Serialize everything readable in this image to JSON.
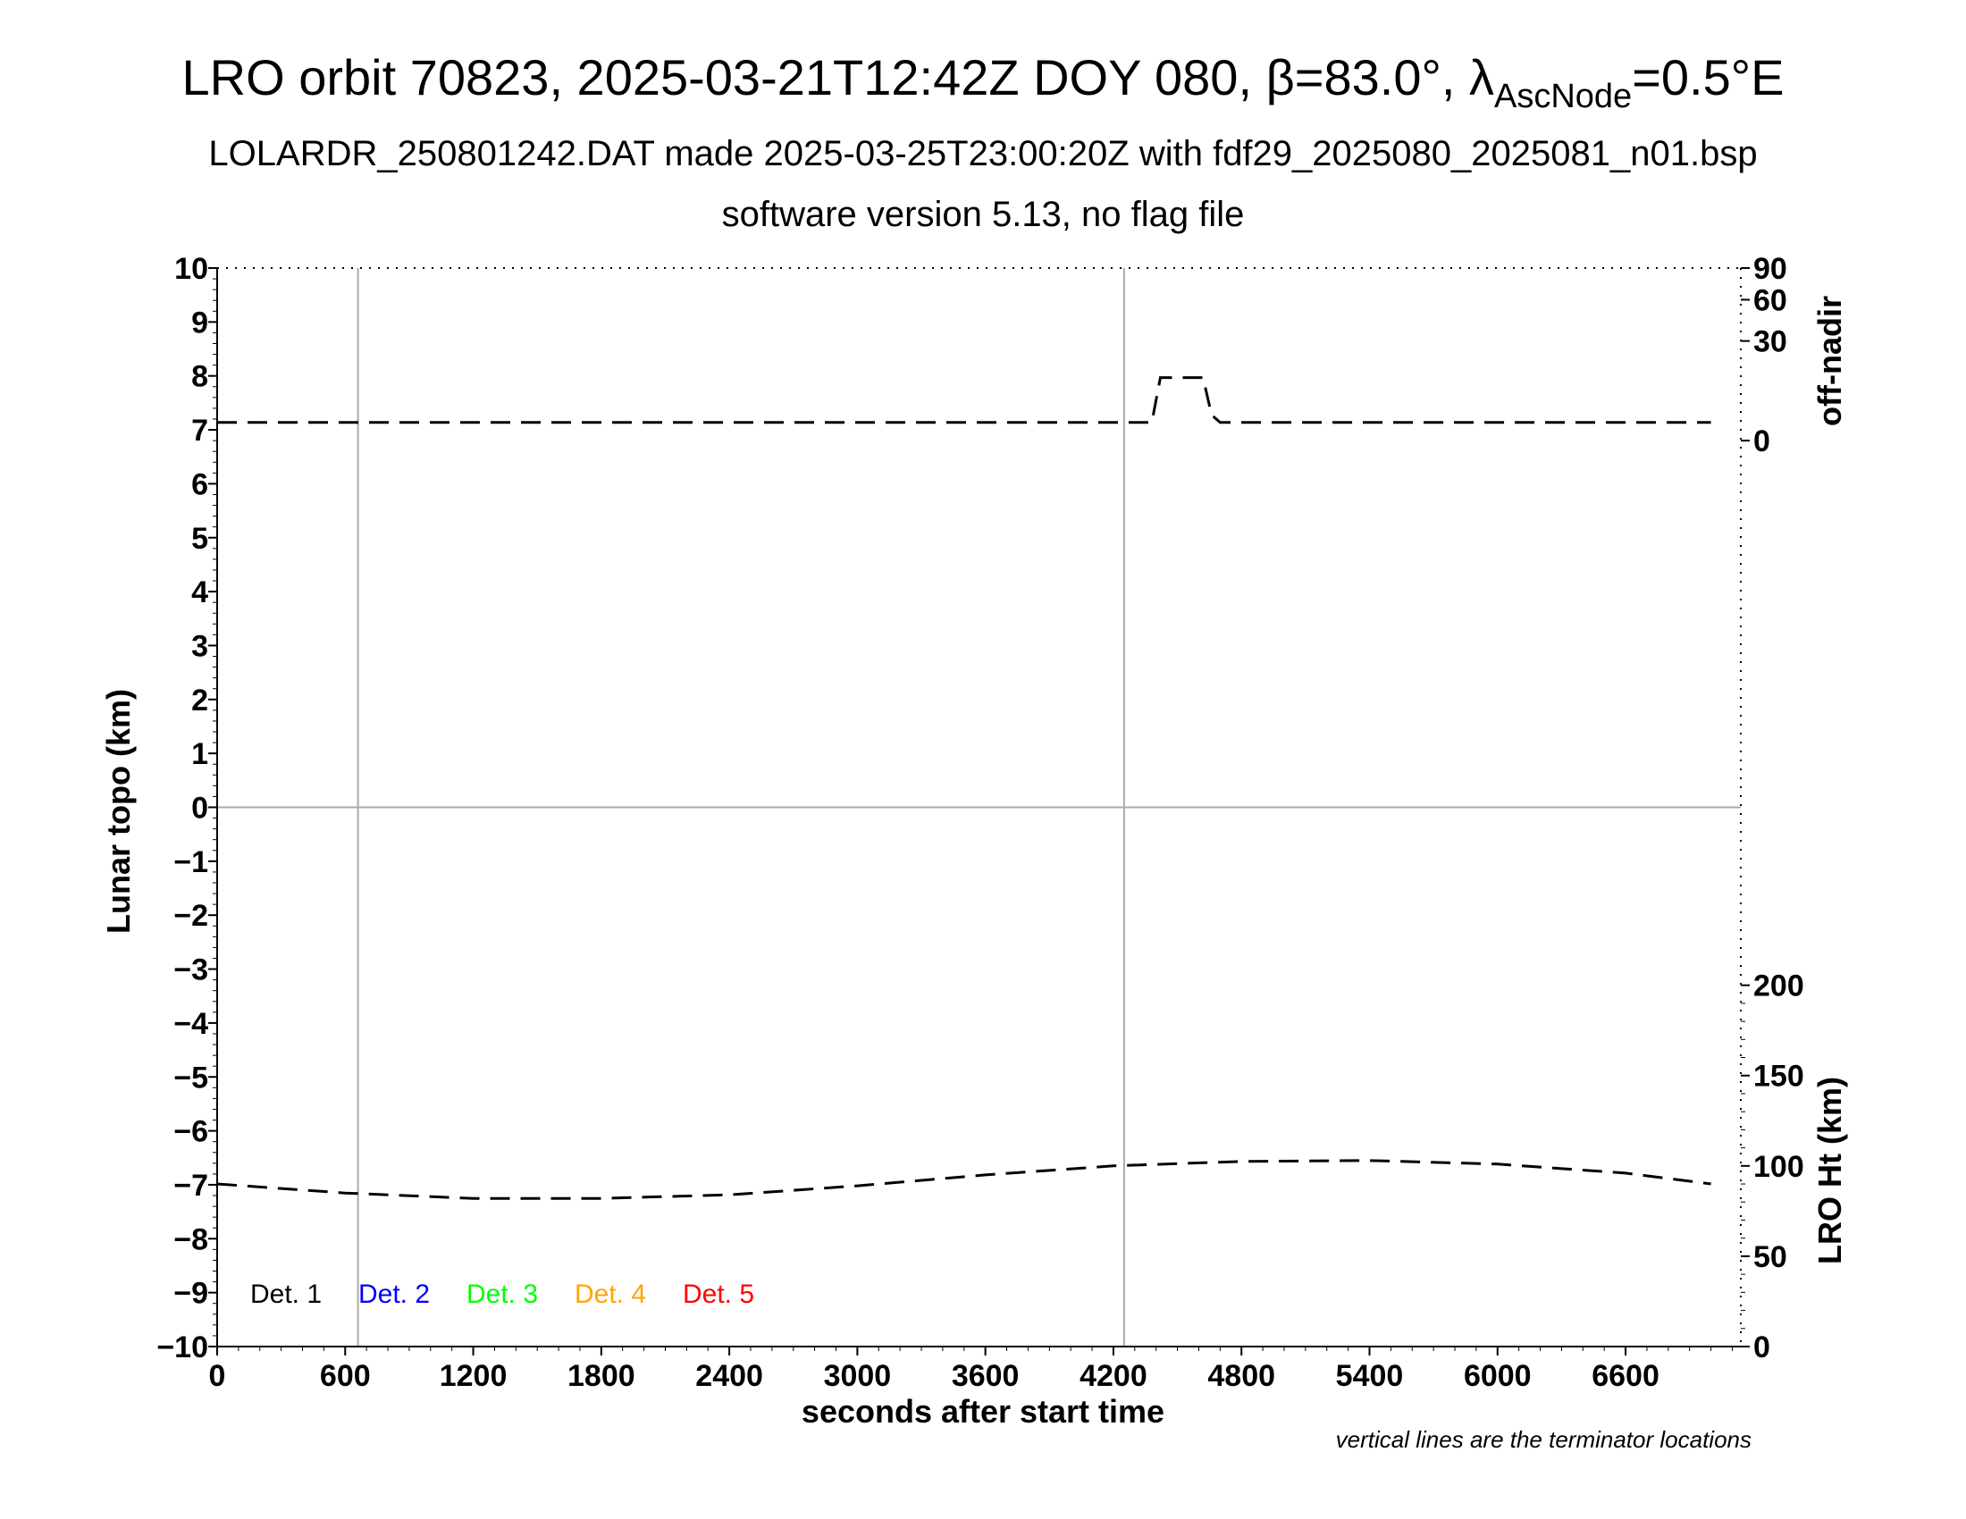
{
  "title": {
    "main": "LRO orbit 70823, 2025-03-21T12:42Z DOY 080, β=83.0°, λ",
    "sub": "AscNode",
    "tail": "=0.5°E"
  },
  "subtitle1": "LOLARDR_250801242.DAT made 2025-03-25T23:00:20Z with fdf29_2025080_2025081_n01.bsp",
  "subtitle2": "software version 5.13, no flag file",
  "footnote": "vertical lines are the terminator locations",
  "chart_data": {
    "type": "line",
    "xlabel": "seconds after start time",
    "ylabel": "Lunar topo (km)",
    "xlim": [
      0,
      7140
    ],
    "ylim": [
      -10,
      10
    ],
    "xticks": [
      0,
      600,
      1200,
      1800,
      2400,
      3000,
      3600,
      4200,
      4800,
      5400,
      6000,
      6600
    ],
    "yticks": [
      10,
      9,
      8,
      7,
      6,
      5,
      4,
      3,
      2,
      1,
      0,
      -1,
      -2,
      -3,
      -4,
      -5,
      -6,
      -7,
      -8,
      -9,
      -10
    ],
    "right_axis_top": {
      "label": "off-nadir",
      "ticks": [
        0,
        30,
        60,
        90
      ]
    },
    "right_axis_bottom": {
      "label": "LRO Ht (km)",
      "ylim": [
        0,
        200
      ],
      "ticks": [
        0,
        50,
        100,
        150,
        200
      ]
    },
    "terminator_lines_x": [
      660,
      4250
    ],
    "zero_line_y": 0,
    "legend": [
      {
        "label": "Det. 1",
        "color": "#000000"
      },
      {
        "label": "Det. 2",
        "color": "#0000ff"
      },
      {
        "label": "Det. 3",
        "color": "#00ff00"
      },
      {
        "label": "Det. 4",
        "color": "#ffa500"
      },
      {
        "label": "Det. 5",
        "color": "#ff0000"
      }
    ],
    "series": [
      {
        "axis": "off-nadir",
        "style": "dashed",
        "color": "#000000",
        "x": [
          0,
          4380,
          4420,
          4620,
          4660,
          4700,
          7000
        ],
        "y": [
          1,
          1,
          12,
          12,
          2,
          1,
          1
        ]
      },
      {
        "axis": "LRO Ht (km)",
        "style": "dashed",
        "color": "#000000",
        "x": [
          0,
          600,
          1200,
          1800,
          2400,
          3000,
          3600,
          4200,
          4800,
          5400,
          6000,
          6600,
          7000
        ],
        "y": [
          90,
          85,
          82,
          82,
          84,
          89,
          95,
          100,
          102.5,
          103,
          101,
          96,
          90
        ]
      }
    ]
  }
}
